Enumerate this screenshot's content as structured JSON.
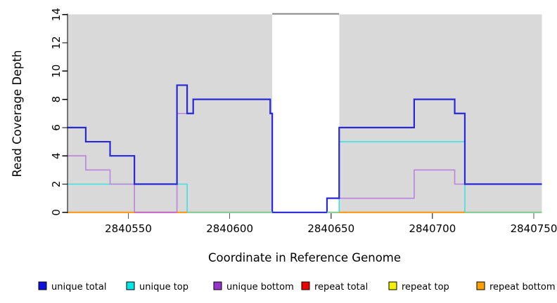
{
  "chart_data": {
    "type": "line",
    "subtype": "step-coverage-plot",
    "title": "",
    "xlabel": "Coordinate in Reference Genome",
    "ylabel": "Read Coverage Depth",
    "xlim": [
      2840520,
      2840754
    ],
    "ylim": [
      0,
      14
    ],
    "x_ticks": [
      2840550,
      2840600,
      2840650,
      2840700,
      2840750
    ],
    "y_ticks": [
      0,
      2,
      4,
      6,
      8,
      10,
      12,
      14
    ],
    "grid": "off",
    "legend_position": "bottom",
    "background_shading": {
      "color": "#d9d9d9",
      "regions": [
        [
          2840520,
          2840621
        ],
        [
          2840654,
          2840754
        ]
      ],
      "note": "gray = unique regions; white gap = repeat region"
    },
    "clipped_repeat_line": {
      "value": 14,
      "from": 2840621,
      "to": 2840654,
      "color": "#8a8a8a",
      "note": "repeat coverage off-scale (clipped at ylim max) across white repeat region"
    },
    "series": [
      {
        "name": "unique total",
        "legend_color": "#1010e0",
        "line_color": "#2828d8",
        "line_width": 2.2,
        "render": "steps",
        "steps": [
          {
            "from": 2840520,
            "to": 2840529,
            "value": 6
          },
          {
            "from": 2840529,
            "to": 2840541,
            "value": 5
          },
          {
            "from": 2840541,
            "to": 2840553,
            "value": 4
          },
          {
            "from": 2840553,
            "to": 2840574,
            "value": 2
          },
          {
            "from": 2840574,
            "to": 2840579,
            "value": 9
          },
          {
            "from": 2840579,
            "to": 2840582,
            "value": 7
          },
          {
            "from": 2840582,
            "to": 2840620,
            "value": 8
          },
          {
            "from": 2840620,
            "to": 2840621,
            "value": 7
          },
          {
            "from": 2840621,
            "to": 2840648,
            "value": 0
          },
          {
            "from": 2840648,
            "to": 2840654,
            "value": 1
          },
          {
            "from": 2840654,
            "to": 2840691,
            "value": 6
          },
          {
            "from": 2840691,
            "to": 2840711,
            "value": 8
          },
          {
            "from": 2840711,
            "to": 2840716,
            "value": 7
          },
          {
            "from": 2840716,
            "to": 2840754,
            "value": 2
          }
        ]
      },
      {
        "name": "unique top",
        "legend_color": "#00e6e6",
        "line_color": "#3ce2e2",
        "line_width": 1.6,
        "render": "steps",
        "steps": [
          {
            "from": 2840520,
            "to": 2840579,
            "value": 2
          },
          {
            "from": 2840579,
            "to": 2840654,
            "value": 0
          },
          {
            "from": 2840654,
            "to": 2840716,
            "value": 5
          },
          {
            "from": 2840716,
            "to": 2840754,
            "value": 0
          }
        ]
      },
      {
        "name": "unique bottom",
        "legend_color": "#9932cc",
        "line_color": "#bc82de",
        "line_width": 1.6,
        "render": "steps",
        "steps": [
          {
            "from": 2840520,
            "to": 2840529,
            "value": 4
          },
          {
            "from": 2840529,
            "to": 2840541,
            "value": 3
          },
          {
            "from": 2840541,
            "to": 2840553,
            "value": 2
          },
          {
            "from": 2840553,
            "to": 2840574,
            "value": 0
          },
          {
            "from": 2840574,
            "to": 2840582,
            "value": 7
          },
          {
            "from": 2840582,
            "to": 2840620,
            "value": 8
          },
          {
            "from": 2840620,
            "to": 2840621,
            "value": 7
          },
          {
            "from": 2840621,
            "to": 2840648,
            "value": 0
          },
          {
            "from": 2840648,
            "to": 2840691,
            "value": 1
          },
          {
            "from": 2840691,
            "to": 2840711,
            "value": 3
          },
          {
            "from": 2840711,
            "to": 2840754,
            "value": 2
          }
        ]
      },
      {
        "name": "repeat total",
        "legend_color": "#ee0000",
        "line_color": "#ee0000",
        "line_width": 1.6,
        "render": "none",
        "note": "0 in unique regions; off-scale (>=14, clipped) in repeat region, drawn as gray clipped_repeat_line",
        "steps": [
          {
            "from": 2840520,
            "to": 2840621,
            "value": 0
          },
          {
            "from": 2840621,
            "to": 2840654,
            "value": 14,
            "clipped": true
          },
          {
            "from": 2840654,
            "to": 2840754,
            "value": 0
          }
        ]
      },
      {
        "name": "repeat top",
        "legend_color": "#f2f200",
        "line_color": "#f2f200",
        "line_width": 1.6,
        "render": "none",
        "note": "0 along visible baseline (blends with cyan into green baseline segments)",
        "steps": [
          {
            "from": 2840520,
            "to": 2840621,
            "value": 0
          },
          {
            "from": 2840654,
            "to": 2840754,
            "value": 0
          }
        ]
      },
      {
        "name": "repeat bottom",
        "legend_color": "#ffa000",
        "line_color": "#ff9100",
        "line_width": 2,
        "render": "none",
        "note": "0 along visible baseline (orange baseline segments)",
        "steps": [
          {
            "from": 2840520,
            "to": 2840621,
            "value": 0
          },
          {
            "from": 2840654,
            "to": 2840754,
            "value": 0
          }
        ]
      }
    ],
    "baseline_segments": [
      {
        "from": 2840520,
        "to": 2840553,
        "color": "#ff9100"
      },
      {
        "from": 2840553,
        "to": 2840574,
        "color": "#c95fc2"
      },
      {
        "from": 2840574,
        "to": 2840579,
        "color": "#ff9100"
      },
      {
        "from": 2840579,
        "to": 2840621,
        "color": "#82cb8c"
      },
      {
        "from": 2840648,
        "to": 2840654,
        "color": "#82cb8c"
      },
      {
        "from": 2840654,
        "to": 2840716,
        "color": "#ff9100"
      },
      {
        "from": 2840716,
        "to": 2840754,
        "color": "#82cb8c"
      }
    ],
    "legend": {
      "items": [
        {
          "label": "unique total",
          "color": "#1010e0"
        },
        {
          "label": "unique top",
          "color": "#00e6e6"
        },
        {
          "label": "unique bottom",
          "color": "#9932cc"
        },
        {
          "label": "repeat total",
          "color": "#ee0000"
        },
        {
          "label": "repeat top",
          "color": "#f2f200"
        },
        {
          "label": "repeat bottom",
          "color": "#ffa000"
        }
      ]
    },
    "colors": {
      "shading": "#d9d9d9",
      "axis": "#000000",
      "x_tick": "#555555",
      "clipped_line": "#8a8a8a"
    }
  }
}
